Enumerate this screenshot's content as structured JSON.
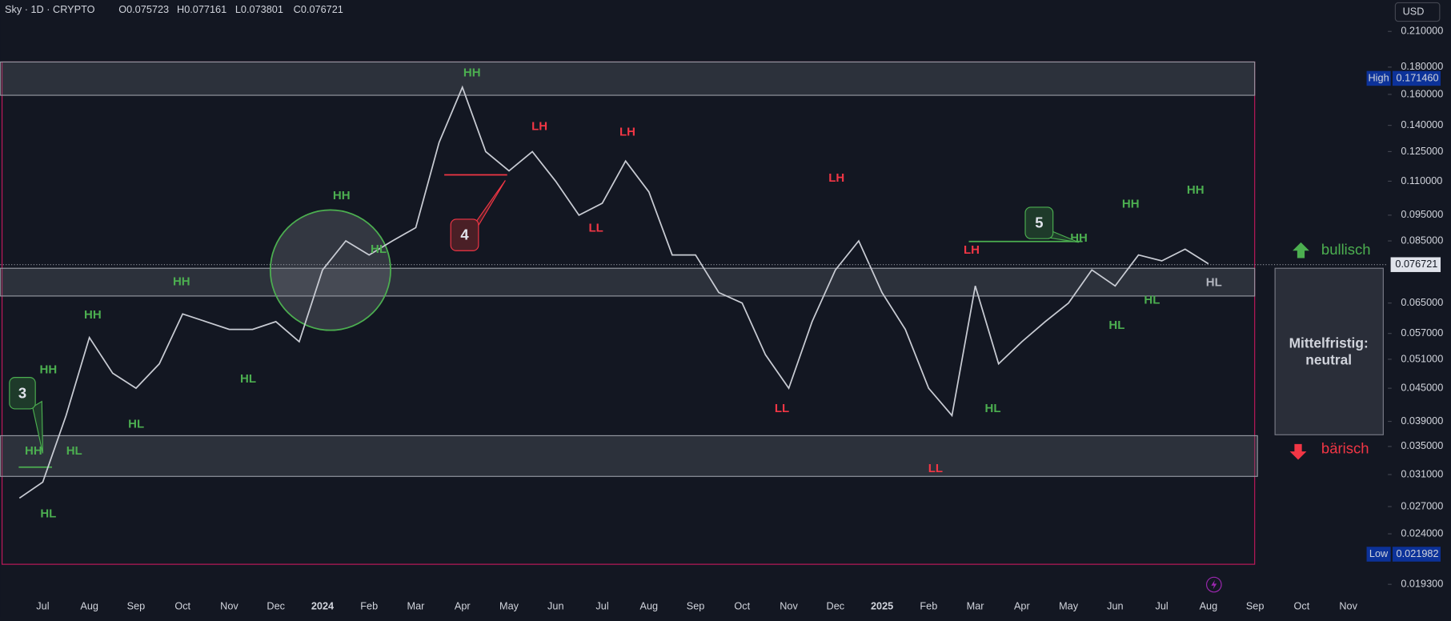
{
  "chart_data": {
    "type": "line",
    "title": "Sky · 1D · CRYPTO",
    "ohlc": [
      "O0.075723",
      "H0.077161",
      "L0.073801",
      "C0.076721"
    ],
    "currency": "USD",
    "log_scale": true,
    "categories": [
      null,
      "Jul",
      null,
      "Aug",
      null,
      "Sep",
      null,
      "Oct",
      null,
      "Nov",
      null,
      "Dec",
      null,
      "2024",
      null,
      "Feb",
      null,
      "Mar",
      null,
      "Apr",
      null,
      "May",
      null,
      "Jun",
      null,
      "Jul",
      null,
      "Aug",
      null,
      "Sep",
      null,
      "Oct",
      null,
      "Nov",
      null,
      "Dec",
      null,
      "2025",
      null,
      "Feb",
      null,
      "Mar",
      null,
      "Apr",
      null,
      "May",
      null,
      "Jun",
      null,
      "Jul",
      null,
      "Aug",
      null,
      "Sep",
      null,
      "Oct",
      null,
      "Nov"
    ],
    "series": [
      {
        "color": "#c9ccd4",
        "values": [
          0.028,
          0.03,
          0.04,
          0.056,
          0.048,
          0.045,
          0.05,
          0.062,
          0.06,
          0.058,
          0.058,
          0.06,
          0.055,
          0.075,
          0.085,
          0.08,
          0.085,
          0.09,
          0.13,
          0.165,
          0.125,
          0.115,
          0.125,
          0.11,
          0.095,
          0.1,
          0.12,
          0.105,
          0.08,
          0.08,
          0.068,
          0.065,
          0.052,
          0.045,
          0.06,
          0.075,
          0.085,
          0.068,
          0.058,
          0.045,
          0.04,
          0.07,
          0.05,
          0.055,
          0.06,
          0.065,
          0.075,
          0.07,
          0.08,
          0.078,
          0.082,
          0.077,
          null,
          null,
          null,
          null,
          null,
          null
        ]
      }
    ],
    "ylim": [
      0.0183,
      0.2405
    ],
    "yticks": [
      {
        "value": 0.21,
        "label": "0.210000"
      },
      {
        "value": 0.18,
        "label": "0.180000"
      },
      {
        "value": 0.16,
        "label": "0.160000"
      },
      {
        "value": 0.14,
        "label": "0.140000"
      },
      {
        "value": 0.125,
        "label": "0.125000"
      },
      {
        "value": 0.11,
        "label": "0.110000"
      },
      {
        "value": 0.095,
        "label": "0.095000"
      },
      {
        "value": 0.085,
        "label": "0.085000"
      },
      {
        "value": 0.065,
        "label": "0.065000"
      },
      {
        "value": 0.057,
        "label": "0.057000"
      },
      {
        "value": 0.051,
        "label": "0.051000"
      },
      {
        "value": 0.045,
        "label": "0.045000"
      },
      {
        "value": 0.039,
        "label": "0.039000"
      },
      {
        "value": 0.035,
        "label": "0.035000"
      },
      {
        "value": 0.031,
        "label": "0.031000"
      },
      {
        "value": 0.027,
        "label": "0.027000"
      },
      {
        "value": 0.024,
        "label": "0.024000"
      },
      {
        "value": 0.0193,
        "label": "0.019300"
      }
    ],
    "high": {
      "name": "High",
      "value": 0.17146,
      "label": "0.171460"
    },
    "low": {
      "name": "Low",
      "value": 0.021982,
      "label": "0.021982"
    },
    "last": {
      "value": 0.076721,
      "label": "0.076721"
    },
    "annotations": [
      {
        "text": "HH",
        "color": "#4caf50"
      },
      {
        "text": "LH",
        "color": "#f23645"
      },
      {
        "text": "LH",
        "color": "#f23645"
      },
      {
        "text": "HH",
        "color": "#4caf50"
      },
      {
        "text": "LL",
        "color": "#f23645"
      },
      {
        "text": "HL",
        "color": "#4caf50"
      },
      {
        "text": "HH",
        "color": "#4caf50"
      },
      {
        "text": "HH",
        "color": "#4caf50"
      },
      {
        "text": "HL",
        "color": "#4caf50"
      },
      {
        "text": "HH",
        "color": "#4caf50"
      },
      {
        "text": "HL",
        "color": "#4caf50"
      },
      {
        "text": "HH",
        "color": "#4caf50"
      },
      {
        "text": "HL",
        "color": "#4caf50"
      },
      {
        "text": "HL",
        "color": "#4caf50"
      },
      {
        "text": "LH",
        "color": "#f23645"
      },
      {
        "text": "LL",
        "color": "#f23645"
      },
      {
        "text": "LH",
        "color": "#f23645"
      },
      {
        "text": "HH",
        "color": "#4caf50"
      },
      {
        "text": "HH",
        "color": "#4caf50"
      },
      {
        "text": "HH",
        "color": "#4caf50"
      },
      {
        "text": "HL",
        "color": "#4caf50"
      },
      {
        "text": "HL",
        "color": "#4caf50"
      },
      {
        "text": "HL",
        "color": "#b2b5be"
      },
      {
        "text": "HL",
        "color": "#4caf50"
      },
      {
        "text": "LL",
        "color": "#f23645"
      }
    ],
    "callouts": [
      "3",
      "4",
      "5"
    ],
    "bullish": "bullisch",
    "bearish": "bärisch",
    "outlook": [
      "Mittelfristig:",
      "neutral"
    ]
  }
}
